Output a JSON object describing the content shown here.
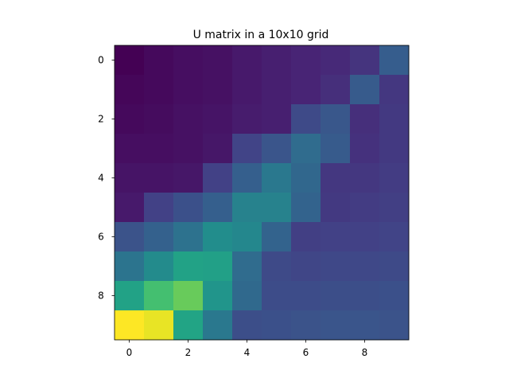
{
  "chart_data": {
    "type": "heatmap",
    "title": "U matrix in a 10x10 grid",
    "xlabel": "",
    "ylabel": "",
    "rows": 10,
    "cols": 10,
    "x_ticks": [
      0,
      2,
      4,
      6,
      8
    ],
    "y_ticks": [
      0,
      2,
      4,
      6,
      8
    ],
    "xlim": [
      -0.5,
      9.5
    ],
    "ylim": [
      9.5,
      -0.5
    ],
    "colormap": "viridis",
    "vmin": 0,
    "vmax": 1,
    "grid": false,
    "values": [
      [
        0.0,
        0.03,
        0.05,
        0.06,
        0.09,
        0.11,
        0.13,
        0.15,
        0.19,
        0.37
      ],
      [
        0.02,
        0.03,
        0.05,
        0.06,
        0.09,
        0.11,
        0.13,
        0.17,
        0.36,
        0.2
      ],
      [
        0.03,
        0.04,
        0.06,
        0.07,
        0.1,
        0.11,
        0.28,
        0.34,
        0.17,
        0.21
      ],
      [
        0.05,
        0.05,
        0.06,
        0.08,
        0.25,
        0.33,
        0.44,
        0.36,
        0.18,
        0.21
      ],
      [
        0.07,
        0.07,
        0.08,
        0.24,
        0.38,
        0.5,
        0.42,
        0.2,
        0.2,
        0.22
      ],
      [
        0.09,
        0.24,
        0.31,
        0.38,
        0.55,
        0.55,
        0.4,
        0.21,
        0.22,
        0.23
      ],
      [
        0.32,
        0.39,
        0.47,
        0.61,
        0.58,
        0.4,
        0.23,
        0.24,
        0.24,
        0.25
      ],
      [
        0.48,
        0.6,
        0.72,
        0.71,
        0.44,
        0.28,
        0.26,
        0.27,
        0.27,
        0.28
      ],
      [
        0.72,
        0.82,
        0.86,
        0.65,
        0.43,
        0.29,
        0.29,
        0.3,
        0.3,
        0.31
      ],
      [
        1.0,
        0.98,
        0.73,
        0.5,
        0.3,
        0.31,
        0.32,
        0.33,
        0.33,
        0.32
      ]
    ]
  }
}
